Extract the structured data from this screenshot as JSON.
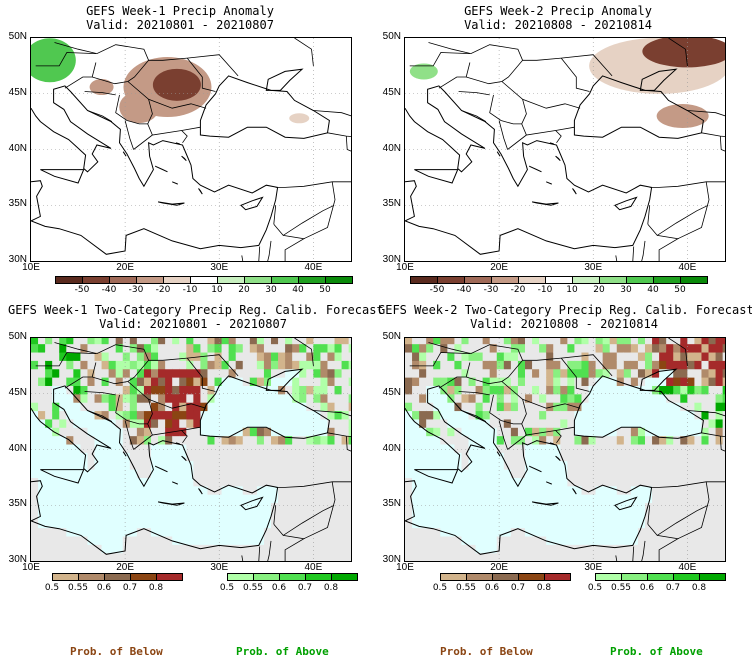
{
  "panels": [
    {
      "title": "GEFS Week-1 Precip Anomaly",
      "valid": "Valid: 20210801 - 20210807"
    },
    {
      "title": "GEFS Week-2 Precip Anomaly",
      "valid": "Valid: 20210808 - 20210814"
    },
    {
      "title": "GEFS Week-1 Two-Category Precip Reg. Calib. Forecast",
      "valid": "Valid: 20210801 - 20210807"
    },
    {
      "title": "GEFS Week-2 Two-Category Precip Reg. Calib. Forecast",
      "valid": "Valid: 20210808 - 20210814"
    }
  ],
  "lat_labels": [
    "50N",
    "45N",
    "40N",
    "35N",
    "30N"
  ],
  "lon_labels": [
    "10E",
    "20E",
    "30E",
    "40E"
  ],
  "anomaly_ticks": [
    "-50",
    "-40",
    "-30",
    "-20",
    "-10",
    "10",
    "20",
    "30",
    "40",
    "50"
  ],
  "anomaly_colors": [
    "#5a2a1e",
    "#7a3f30",
    "#a06a58",
    "#c49a86",
    "#e6d2c4",
    "#ffffff",
    "#c8f0c0",
    "#90e088",
    "#50c850",
    "#20a020",
    "#0a8a0a"
  ],
  "prob_ticks": [
    "0.5",
    "0.55",
    "0.6",
    "0.7",
    "0.8"
  ],
  "below_colors": [
    "#d2b48c",
    "#b08a6a",
    "#8b6a50",
    "#8b4513",
    "#a52a2a"
  ],
  "above_colors": [
    "#b0ffa8",
    "#88f080",
    "#50e050",
    "#20c820",
    "#00a800"
  ],
  "prob_below": "Prob. of Below",
  "prob_above": "Prob. of Above",
  "colors": {
    "sea_prob": "#e0ffff",
    "no_signal": "#e8e8e8",
    "below_label": "#8b4513",
    "above_label": "#00a000"
  }
}
